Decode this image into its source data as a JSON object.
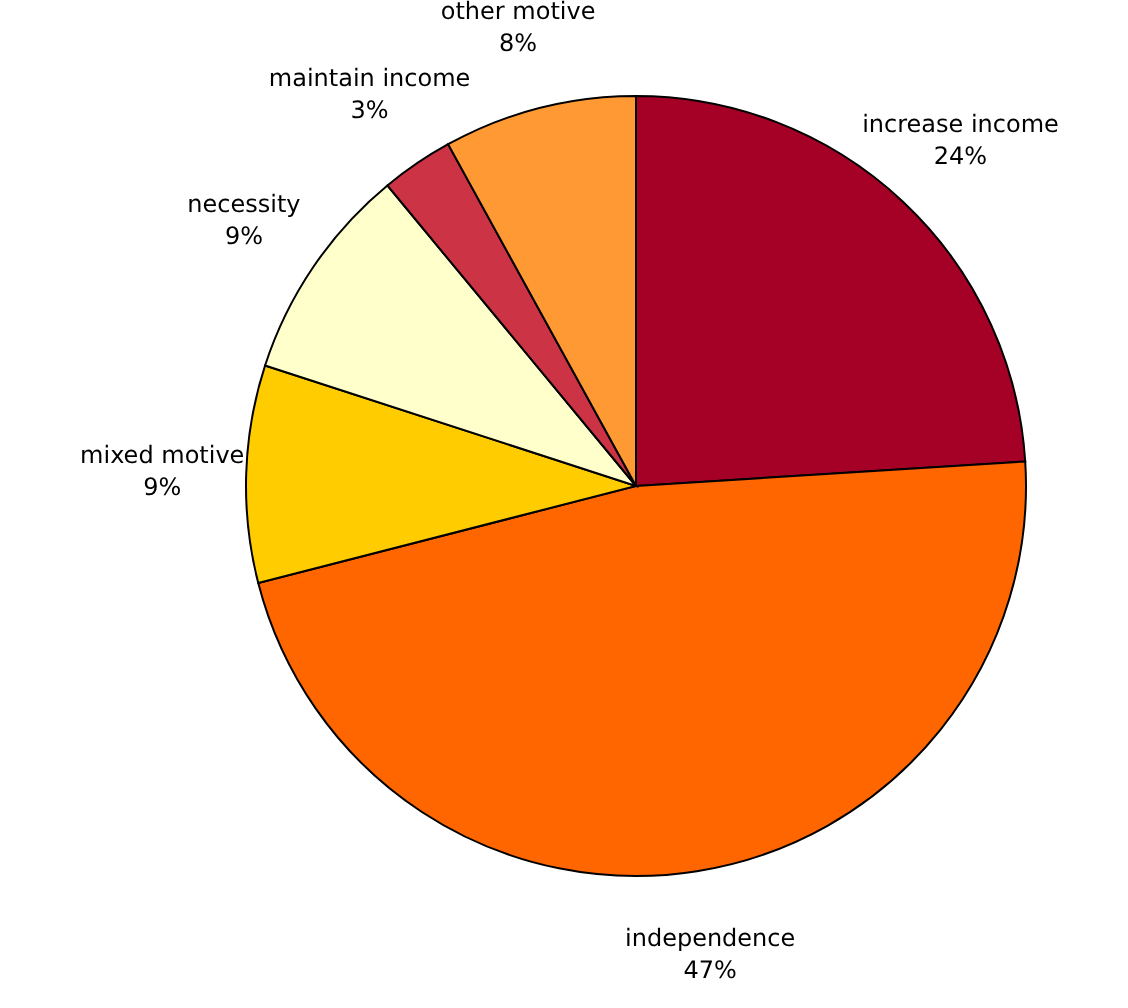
{
  "chart_data": {
    "type": "pie",
    "categories": [
      "increase income",
      "independence",
      "mixed motive",
      "necessity",
      "maintain income",
      "other motive"
    ],
    "values": [
      24,
      47,
      9,
      9,
      3,
      8
    ],
    "value_labels": [
      "24%",
      "47%",
      "9%",
      "9%",
      "3%",
      "8%"
    ],
    "colors": [
      "#a50026",
      "#ff6600",
      "#ffcc00",
      "#ffffcc",
      "#cc3344",
      "#ff9933"
    ]
  }
}
